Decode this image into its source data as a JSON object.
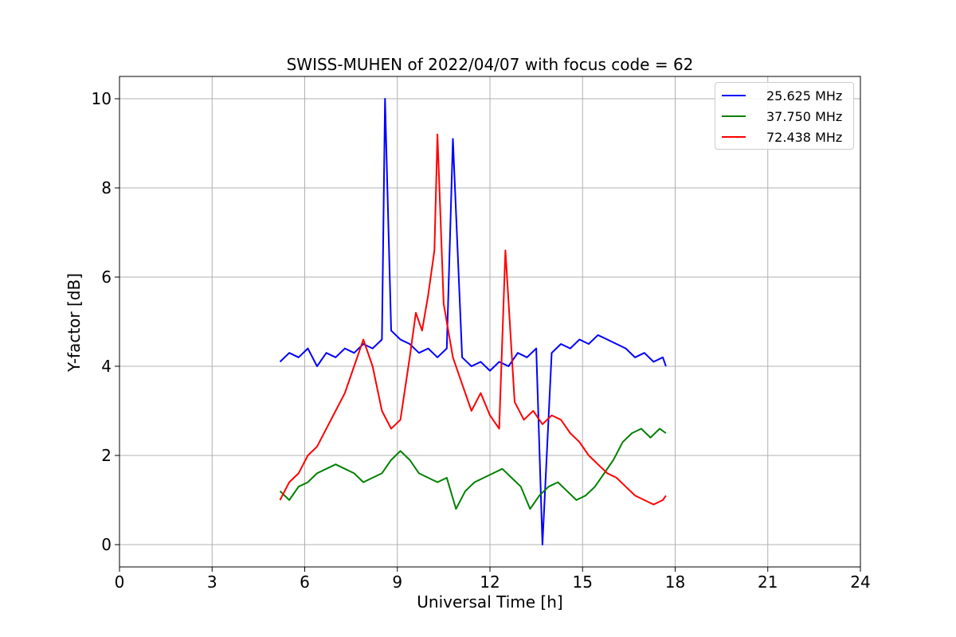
{
  "chart_data": {
    "type": "line",
    "title": "SWISS-MUHEN of 2022/04/07 with focus code = 62",
    "xlabel": "Universal Time [h]",
    "ylabel": "Y-factor [dB]",
    "xlim": [
      0,
      24
    ],
    "ylim": [
      -0.5,
      10.5
    ],
    "xticks": [
      0,
      3,
      6,
      9,
      12,
      15,
      18,
      21,
      24
    ],
    "yticks": [
      0,
      2,
      4,
      6,
      8,
      10
    ],
    "grid": true,
    "legend_position": "top-right",
    "series": [
      {
        "name": "25.625 MHz",
        "color": "#0000ff",
        "x": [
          5.2,
          5.5,
          5.8,
          6.1,
          6.4,
          6.7,
          7.0,
          7.3,
          7.6,
          7.9,
          8.2,
          8.5,
          8.6,
          8.8,
          9.1,
          9.4,
          9.7,
          10.0,
          10.3,
          10.6,
          10.8,
          11.1,
          11.4,
          11.7,
          12.0,
          12.3,
          12.6,
          12.9,
          13.2,
          13.5,
          13.7,
          14.0,
          14.3,
          14.6,
          14.9,
          15.2,
          15.5,
          15.8,
          16.1,
          16.4,
          16.7,
          17.0,
          17.3,
          17.6,
          17.7
        ],
        "y": [
          4.1,
          4.3,
          4.2,
          4.4,
          4.0,
          4.3,
          4.2,
          4.4,
          4.3,
          4.5,
          4.4,
          4.6,
          10.0,
          4.8,
          4.6,
          4.5,
          4.3,
          4.4,
          4.2,
          4.4,
          9.1,
          4.2,
          4.0,
          4.1,
          3.9,
          4.1,
          4.0,
          4.3,
          4.2,
          4.4,
          0.0,
          4.3,
          4.5,
          4.4,
          4.6,
          4.5,
          4.7,
          4.6,
          4.5,
          4.4,
          4.2,
          4.3,
          4.1,
          4.2,
          4.0
        ]
      },
      {
        "name": "37.750 MHz",
        "color": "#008000",
        "x": [
          5.2,
          5.5,
          5.8,
          6.1,
          6.4,
          6.7,
          7.0,
          7.3,
          7.6,
          7.9,
          8.2,
          8.5,
          8.8,
          9.1,
          9.4,
          9.7,
          10.0,
          10.3,
          10.6,
          10.9,
          11.2,
          11.5,
          11.8,
          12.1,
          12.4,
          12.7,
          13.0,
          13.3,
          13.6,
          13.9,
          14.2,
          14.5,
          14.8,
          15.1,
          15.4,
          15.7,
          16.0,
          16.3,
          16.6,
          16.9,
          17.2,
          17.5,
          17.7
        ],
        "y": [
          1.2,
          1.0,
          1.3,
          1.4,
          1.6,
          1.7,
          1.8,
          1.7,
          1.6,
          1.4,
          1.5,
          1.6,
          1.9,
          2.1,
          1.9,
          1.6,
          1.5,
          1.4,
          1.5,
          0.8,
          1.2,
          1.4,
          1.5,
          1.6,
          1.7,
          1.5,
          1.3,
          0.8,
          1.1,
          1.3,
          1.4,
          1.2,
          1.0,
          1.1,
          1.3,
          1.6,
          1.9,
          2.3,
          2.5,
          2.6,
          2.4,
          2.6,
          2.5
        ]
      },
      {
        "name": "72.438 MHz",
        "color": "#ff0000",
        "x": [
          5.2,
          5.5,
          5.8,
          6.1,
          6.4,
          6.7,
          7.0,
          7.3,
          7.6,
          7.9,
          8.2,
          8.5,
          8.8,
          9.1,
          9.4,
          9.6,
          9.8,
          10.0,
          10.2,
          10.3,
          10.5,
          10.8,
          11.1,
          11.4,
          11.7,
          12.0,
          12.3,
          12.5,
          12.8,
          13.1,
          13.4,
          13.7,
          14.0,
          14.3,
          14.6,
          14.9,
          15.2,
          15.5,
          15.8,
          16.1,
          16.4,
          16.7,
          17.0,
          17.3,
          17.6,
          17.7
        ],
        "y": [
          1.0,
          1.4,
          1.6,
          2.0,
          2.2,
          2.6,
          3.0,
          3.4,
          4.0,
          4.6,
          4.0,
          3.0,
          2.6,
          2.8,
          4.2,
          5.2,
          4.8,
          5.6,
          6.6,
          9.2,
          5.4,
          4.2,
          3.6,
          3.0,
          3.4,
          2.9,
          2.6,
          6.6,
          3.2,
          2.8,
          3.0,
          2.7,
          2.9,
          2.8,
          2.5,
          2.3,
          2.0,
          1.8,
          1.6,
          1.5,
          1.3,
          1.1,
          1.0,
          0.9,
          1.0,
          1.1
        ]
      }
    ]
  }
}
